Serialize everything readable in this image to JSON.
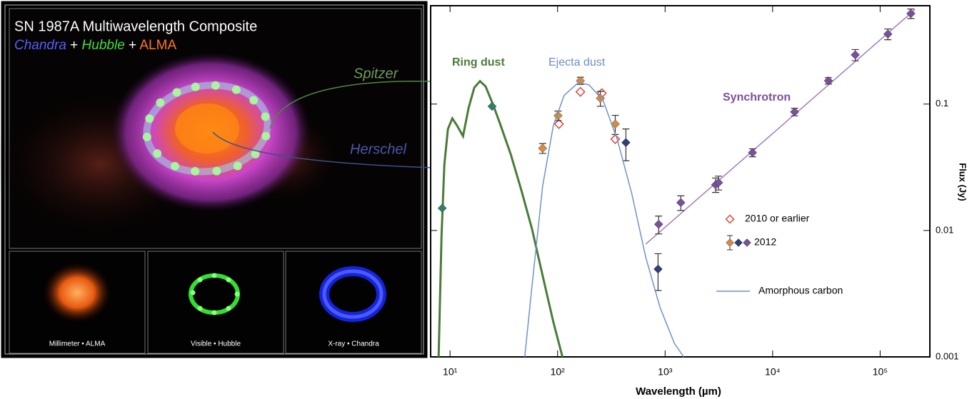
{
  "image_panel": {
    "title": "SN 1987A Multiwavelength Composite",
    "subtitle": [
      "Chandra",
      " + ",
      "Hubble",
      " + ",
      "ALMA"
    ],
    "labels": [
      "Spitzer",
      "Herschel"
    ],
    "captions": [
      "Millimeter • ALMA",
      "Visible • Hubble",
      "X-ray • Chandra"
    ]
  },
  "chart_data": {
    "type": "line",
    "x_label": "Wavelength (µm)",
    "y_label": "Flux (Jy)",
    "log_x": true,
    "log_y": true,
    "xlim": [
      6.6,
      290000
    ],
    "ylim": [
      0.001,
      0.6
    ],
    "xticks": [
      {
        "value": 10,
        "label": "10¹"
      },
      {
        "value": 100,
        "label": "10²"
      },
      {
        "value": 1000,
        "label": "10³"
      },
      {
        "value": 10000,
        "label": "10⁴"
      },
      {
        "value": 100000,
        "label": "10⁵"
      }
    ],
    "yticks": [
      0.1,
      0.01,
      0.001
    ],
    "annotations": [
      {
        "text": "Ring dust",
        "color": "#4a7b39"
      },
      {
        "text": "Ejecta dust",
        "color": "#6b8fc6"
      },
      {
        "text": "Synchrotron",
        "color": "#7a4f9c"
      }
    ],
    "series": [
      {
        "style": "line",
        "color": "#4a7b39",
        "x": [
          7.83,
          8.33,
          8.85,
          9.55,
          10.5,
          11.6,
          13.2,
          14.9,
          16.8,
          19.0,
          21.4,
          25.0,
          29.1,
          36.6,
          45.9,
          57.8,
          72.6,
          91.3,
          111
        ],
        "values": [
          0.001,
          0.009,
          0.0331,
          0.0634,
          0.0771,
          0.0677,
          0.0557,
          0.0937,
          0.135,
          0.152,
          0.138,
          0.1,
          0.0704,
          0.0403,
          0.021,
          0.0103,
          0.0044,
          0.00189,
          0.001
        ]
      },
      {
        "style": "points",
        "marker": "diamond",
        "color": "#2f7f6a",
        "x": [
          8.45,
          24.6
        ],
        "values": [
          0.015,
          0.096
        ]
      },
      {
        "style": "line",
        "color": "#a47cba",
        "x": [
          660,
          211000
        ],
        "values": [
          0.0078,
          0.56
        ]
      },
      {
        "name": "2010 or earlier",
        "style": "points",
        "marker": "diamond-open",
        "color": "#e0453a",
        "x": [
          103,
          163,
          258,
          344
        ],
        "values": [
          0.0695,
          0.125,
          0.122,
          0.0528
        ]
      },
      {
        "name": "2012",
        "style": "points",
        "marker": "diamond",
        "color": "#d98a3d",
        "x": [
          72.6,
          101,
          163,
          250,
          344
        ],
        "values": [
          0.0447,
          0.081,
          0.153,
          0.111,
          0.0695
        ],
        "errors": [
          0.004,
          0.007,
          0.01,
          0.015,
          0.012
        ]
      },
      {
        "style": "points",
        "marker": "diamond",
        "color": "#2e3f7a",
        "x": [
          432,
          860
        ],
        "values": [
          0.0496,
          0.00495
        ],
        "errors": [
          0.014,
          0.0016
        ]
      },
      {
        "style": "points",
        "marker": "diamond",
        "color": "#7a4f9c",
        "x": [
          871,
          1400,
          2950,
          3140,
          6500,
          16000,
          33000,
          58700,
          118000,
          193000
        ],
        "values": [
          0.0112,
          0.0166,
          0.023,
          0.0239,
          0.0413,
          0.0867,
          0.153,
          0.245,
          0.358,
          0.52
        ],
        "errors": [
          0.0018,
          0.0022,
          0.003,
          0.003,
          0.003,
          0.006,
          0.009,
          0.025,
          0.035,
          0.045
        ]
      },
      {
        "name": "Amorphous carbon",
        "style": "line",
        "color": "#6e93c9",
        "x": [
          49.5,
          57.8,
          72.6,
          91.3,
          115,
          156,
          196,
          265,
          360,
          489,
          662,
          899,
          1220,
          1490
        ],
        "values": [
          0.001,
          0.00362,
          0.0224,
          0.0677,
          0.117,
          0.148,
          0.142,
          0.107,
          0.0522,
          0.0197,
          0.0061,
          0.00245,
          0.00128,
          0.001
        ]
      }
    ]
  }
}
